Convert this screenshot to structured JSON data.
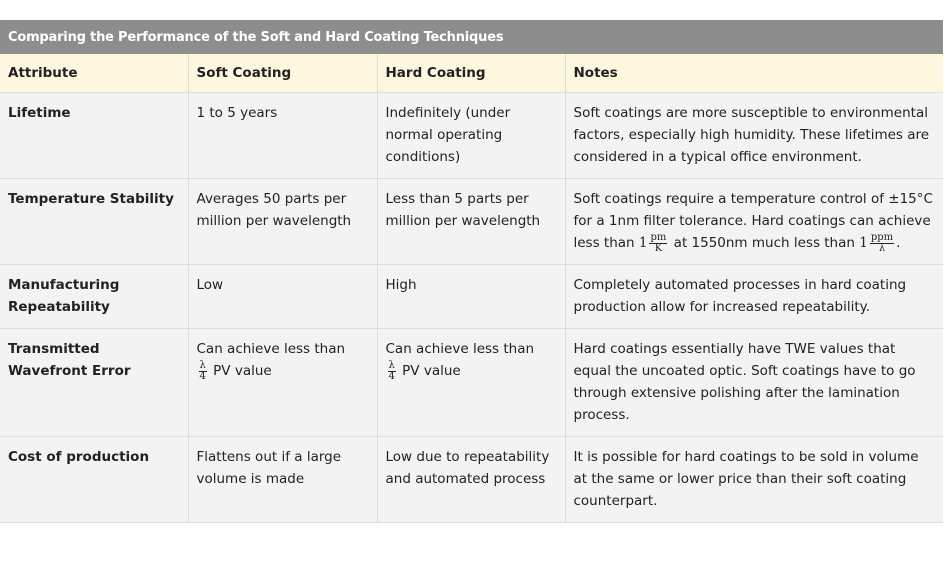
{
  "table": {
    "caption": "Comparing the Performance of the Soft and Hard Coating Techniques",
    "headers": [
      "Attribute",
      "Soft Coating",
      "Hard Coating",
      "Notes"
    ],
    "rows": [
      {
        "attribute": "Lifetime",
        "soft": "1 to 5 years",
        "hard": "Indefinitely (under normal operating conditions)",
        "notes": "Soft coatings are more susceptible to environmental factors, especially high humidity. These lifetimes are considered in a typical office environment."
      },
      {
        "attribute": "Temperature Stability",
        "soft": "Averages 50 parts per million per wavelength",
        "hard": "Less than 5 parts per million per wavelength",
        "notes": {
          "part1": "Soft coatings require a temperature control of ±15°C for a 1nm filter tolerance. Hard coatings can achieve less than ",
          "m1_one": "1",
          "m1_num": "pm",
          "m1_den": "K",
          "part2": " at 1550nm much less than ",
          "m2_one": "1",
          "m2_num": "ppm",
          "m2_den": "λ",
          "part3": "."
        }
      },
      {
        "attribute": "Manufacturing Repeatability",
        "soft": "Low",
        "hard": "High",
        "notes": "Completely automated processes in hard coating production allow for increased repeatability."
      },
      {
        "attribute": "Transmitted Wavefront Error",
        "soft": {
          "prefix": "Can achieve less than",
          "num": "λ",
          "den": "4",
          "suffix": " PV value"
        },
        "hard": {
          "prefix": "Can achieve less than",
          "num": "λ",
          "den": "4",
          "suffix": " PV value"
        },
        "notes": "Hard coatings essentially have TWE values that equal the uncoated optic. Soft coatings have to go through extensive polishing after the lamination process."
      },
      {
        "attribute": "Cost of production",
        "soft": "Flattens out if a large volume is made",
        "hard": "Low due to repeatability and automated process",
        "notes": "It is possible for hard coatings to be sold in volume at the same or lower price than their soft coating counterpart."
      }
    ]
  },
  "colors": {
    "caption_bg": "#8d8d8d",
    "header_bg": "#fdf7df",
    "row_bg": "#f3f3f3",
    "border": "#dddddd"
  }
}
